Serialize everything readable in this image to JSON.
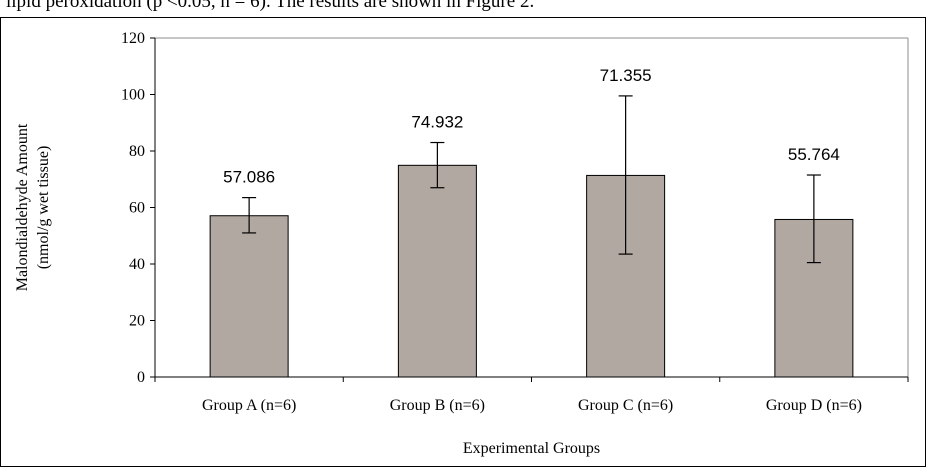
{
  "page": {
    "top_text": "lipid peroxidation (p <0.05, n = 6). The results are shown in Figure 2."
  },
  "chart_data": {
    "type": "bar",
    "categories": [
      "Group A (n=6)",
      "Group B (n=6)",
      "Group C (n=6)",
      "Group D (n=6)"
    ],
    "values": [
      57.086,
      74.932,
      71.355,
      55.764
    ],
    "data_labels": [
      "57.086",
      "74.932",
      "71.355",
      "55.764"
    ],
    "error_low": [
      51,
      67,
      43.5,
      40.5
    ],
    "error_high": [
      63.5,
      83,
      99.5,
      71.5
    ],
    "title": "",
    "xlabel": "Experimental Groups",
    "ylabel": [
      "Malondialdehyde Amount",
      "(nmol/g wet tissue)"
    ],
    "ylim": [
      0,
      120
    ],
    "yticks": [
      0,
      20,
      40,
      60,
      80,
      100,
      120
    ],
    "grid": false,
    "legend": "none",
    "colors": {
      "bar_fill": "#b1a8a2",
      "bar_stroke": "#000000",
      "plot_border": "#8c8c8c",
      "axis": "#000000"
    }
  }
}
